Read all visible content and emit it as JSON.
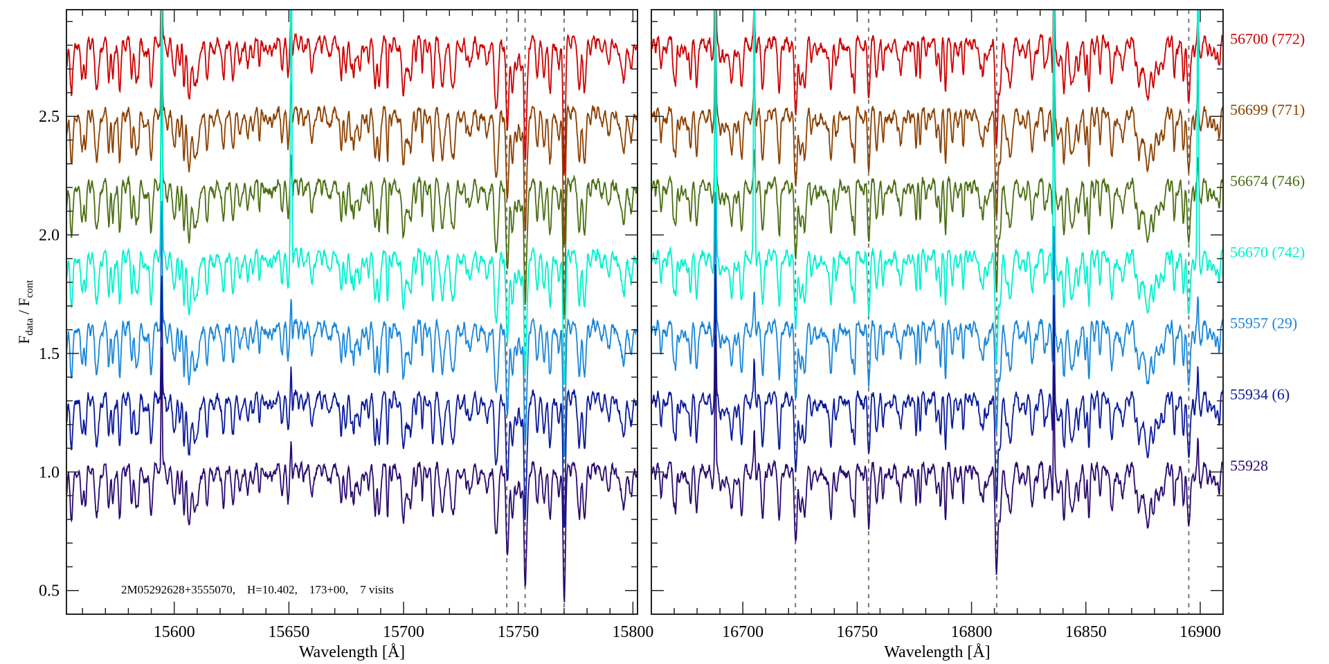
{
  "chart_data": {
    "type": "line",
    "ylabel_main": "F",
    "ylabel_sub1": "data",
    "ylabel_sep": " / F",
    "ylabel_sub2": "cont",
    "ylim": [
      0.4,
      2.95
    ],
    "yticks": [
      0.5,
      1.0,
      1.5,
      2.0,
      2.5
    ],
    "ytick_labels": [
      "0.5",
      "1.0",
      "1.5",
      "2.0",
      "2.5"
    ],
    "annotation": "2M05292628+3555070,    H=10.402,    173+00,    7 visits",
    "panels": [
      {
        "xlabel": "Wavelength [Å]",
        "xlim": [
          15553,
          15802
        ],
        "xticks": [
          15600,
          15650,
          15700,
          15750,
          15800
        ],
        "xtick_labels": [
          "15600",
          "15650",
          "15700",
          "15750",
          "15800"
        ],
        "dashed_lines": [
          15745,
          15753,
          15770
        ],
        "emission": [
          15594.5,
          15651
        ]
      },
      {
        "xlabel": "Wavelength [Å]",
        "xlim": [
          16660,
          16910
        ],
        "xticks": [
          16700,
          16750,
          16800,
          16850,
          16900
        ],
        "xtick_labels": [
          "16700",
          "16750",
          "16800",
          "16850",
          "16900"
        ],
        "dashed_lines": [
          16723,
          16755,
          16811,
          16895
        ],
        "emission": [
          16688,
          16705,
          16836,
          16899
        ]
      }
    ],
    "series": [
      {
        "name": "56700 (772)",
        "offset": 2.8,
        "color": "#cc0000"
      },
      {
        "name": "56699 (771)",
        "offset": 2.5,
        "color": "#8b4000"
      },
      {
        "name": "56674 (746)",
        "offset": 2.2,
        "color": "#4a6e12"
      },
      {
        "name": "56670 (742)",
        "offset": 1.9,
        "color": "#00f0d0"
      },
      {
        "name": "55957 (29)",
        "offset": 1.6,
        "color": "#1a86d8"
      },
      {
        "name": "55934 (6)",
        "offset": 1.3,
        "color": "#0a1a9a"
      },
      {
        "name": "55928",
        "offset": 1.0,
        "color": "#2a0a6e"
      }
    ]
  }
}
